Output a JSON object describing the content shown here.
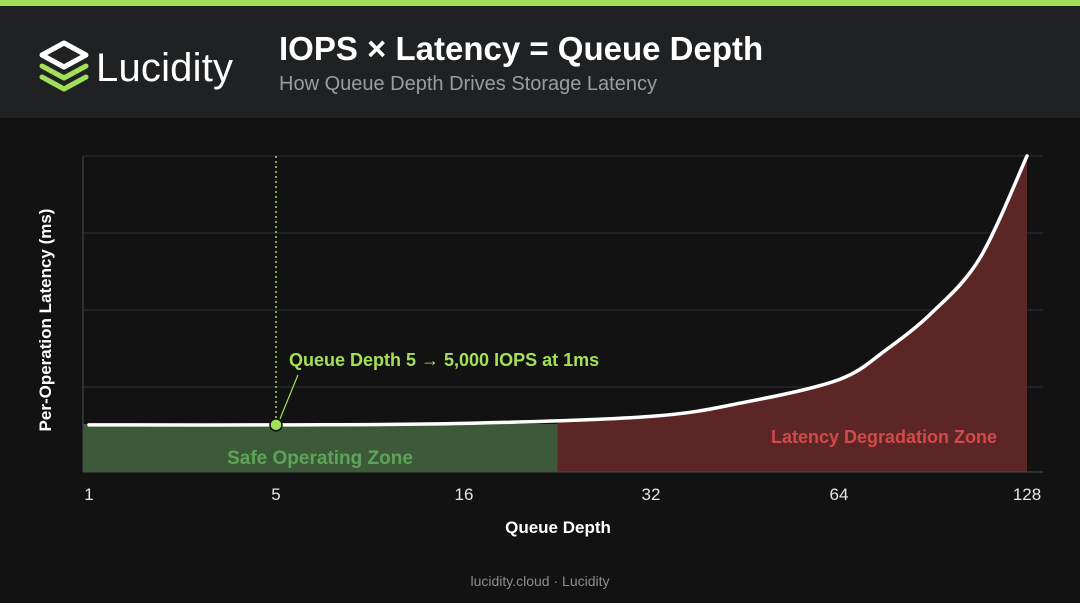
{
  "brand": {
    "name": "Lucidity",
    "logo_icon": "stacked-layers-icon",
    "accent": "#a3e05a"
  },
  "header": {
    "title": "IOPS × Latency = Queue Depth",
    "subtitle": "How Queue Depth Drives Storage Latency"
  },
  "footer": {
    "text": "lucidity.cloud · Lucidity"
  },
  "chart_data": {
    "type": "line",
    "title": "IOPS × Latency = Queue Depth",
    "subtitle": "How Queue Depth Drives Storage Latency",
    "xlabel": "Queue Depth",
    "ylabel": "Per-Operation Latency (ms)",
    "x_tick_labels": [
      "1",
      "5",
      "16",
      "32",
      "64",
      "128"
    ],
    "x_tick_values": [
      1,
      5,
      16,
      32,
      64,
      128
    ],
    "xlim": [
      1,
      128
    ],
    "ylim": [
      0,
      20
    ],
    "y_tick_labels_shown": false,
    "grid": true,
    "series": [
      {
        "x": [
          1,
          5,
          16,
          32,
          48,
          64,
          80,
          96,
          112,
          128
        ],
        "y": [
          1.0,
          1.0,
          1.1,
          1.6,
          2.6,
          4.2,
          6.3,
          9.0,
          12.8,
          20.0
        ],
        "color": "#ffffff"
      }
    ],
    "zones": [
      {
        "label": "Safe Operating Zone",
        "x_start": 1,
        "x_end": 24,
        "y_top": 1.5,
        "color": "#3c5a37",
        "label_color": "#5fa35b"
      },
      {
        "label": "Latency Degradation Zone",
        "x_start": 24,
        "x_end": 128,
        "color": "#5d2626",
        "label_color": "#d24a4a"
      }
    ],
    "marker": {
      "x": 5,
      "y": 1.0,
      "label": "Queue Depth 5 → 5,000 IOPS at 1ms",
      "color": "#a3e05a"
    }
  }
}
